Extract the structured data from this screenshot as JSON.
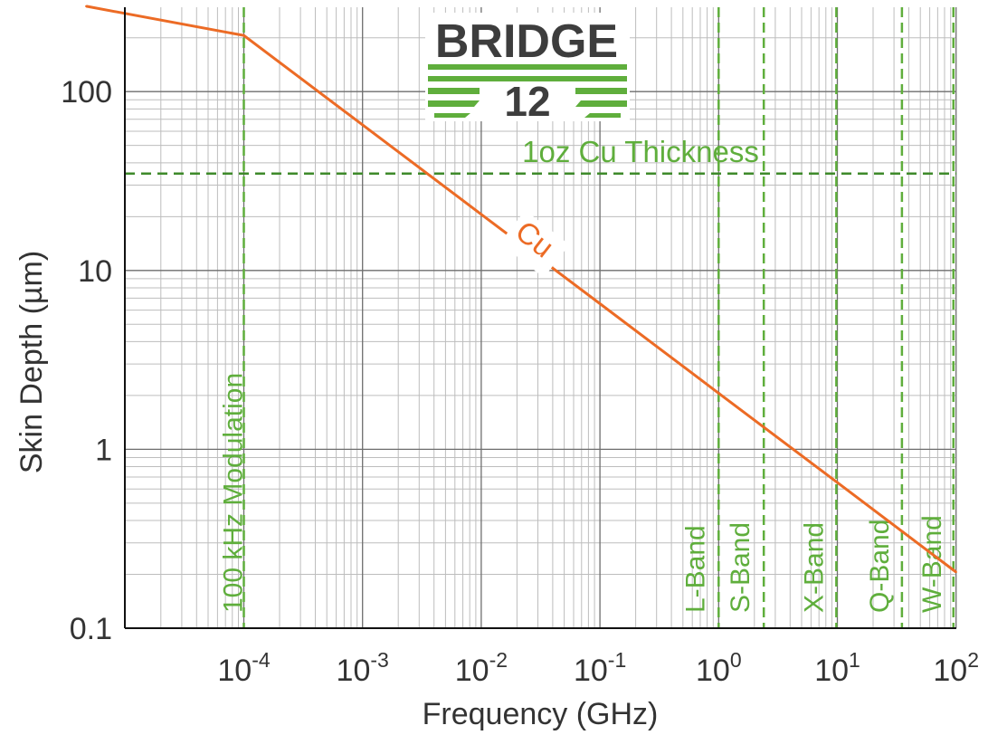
{
  "colors": {
    "accent_green": "#5fae3c",
    "dark_green": "#3e8a2a",
    "curve_orange": "#ec6b25",
    "axis_text": "#333333",
    "logo_gray": "#3d3d3d"
  },
  "logo": {
    "line1": "BRIDGE",
    "line2": "12"
  },
  "chart_data": {
    "type": "line",
    "xlabel": "Frequency (GHz)",
    "ylabel": "Skin Depth (µm)",
    "x_scale": "log",
    "y_scale": "log",
    "xlim": [
      1.8e-06,
      100
    ],
    "ylim": [
      0.1,
      300
    ],
    "grid": true,
    "x_ticks": [
      {
        "value": 0.0001,
        "base": "10",
        "exp": "-4"
      },
      {
        "value": 0.001,
        "base": "10",
        "exp": "-3"
      },
      {
        "value": 0.01,
        "base": "10",
        "exp": "-2"
      },
      {
        "value": 0.1,
        "base": "10",
        "exp": "-1"
      },
      {
        "value": 1,
        "base": "10",
        "exp": "0"
      },
      {
        "value": 10,
        "base": "10",
        "exp": "1"
      },
      {
        "value": 100,
        "base": "10",
        "exp": "2"
      }
    ],
    "y_ticks": [
      {
        "value": 0.1,
        "label": "0.1"
      },
      {
        "value": 1,
        "label": "1"
      },
      {
        "value": 10,
        "label": "10"
      },
      {
        "value": 100,
        "label": "100"
      }
    ],
    "series": [
      {
        "name": "Cu",
        "x": [
          4.7e-06,
          0.0001,
          0.001,
          0.01,
          0.1,
          1,
          10,
          100
        ],
        "y": [
          300,
          206,
          65.2,
          20.6,
          6.52,
          2.06,
          0.652,
          0.206
        ]
      }
    ],
    "hlines": [
      {
        "y": 34.8,
        "label": "1oz Cu Thickness"
      }
    ],
    "vlines": [
      {
        "x": 0.0001,
        "label": "100 kHz Modulation",
        "style": "dashed"
      },
      {
        "x": 1,
        "label": "L-Band",
        "style": "dashed"
      },
      {
        "x": 2.4,
        "label": "S-Band",
        "style": "dashed"
      },
      {
        "x": 9.8,
        "label": "X-Band",
        "style": "dashed"
      },
      {
        "x": 35,
        "label": "Q-Band",
        "style": "dashed"
      },
      {
        "x": 95,
        "label": "W-Band",
        "style": "dashed"
      }
    ]
  }
}
